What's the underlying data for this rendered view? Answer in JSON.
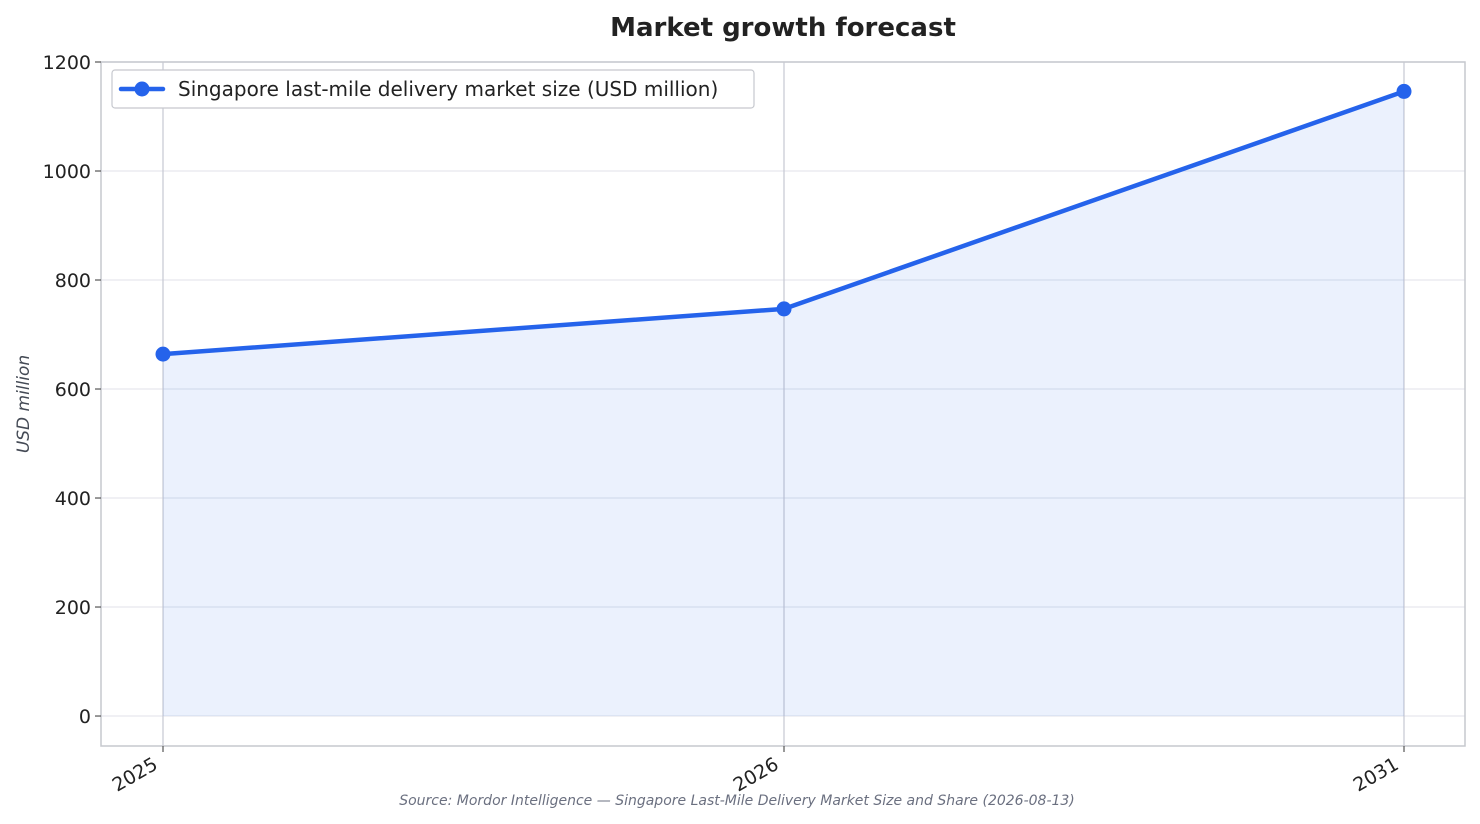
{
  "chart_data": {
    "type": "area",
    "title": "Market growth forecast",
    "xlabel": "",
    "ylabel": "USD million",
    "categories": [
      "2025",
      "2026",
      "2031"
    ],
    "series": [
      {
        "name": "Singapore last-mile delivery market size (USD million)",
        "values": [
          664,
          747,
          1146
        ]
      }
    ],
    "ylim": [
      -55,
      1200
    ],
    "yticks": [
      0,
      200,
      400,
      600,
      800,
      1000,
      1200
    ],
    "grid": true,
    "legend_position": "top-left",
    "source": "Source: Mordor Intelligence — Singapore Last-Mile Delivery Market Size and Share (2026-08-13)"
  },
  "colors": {
    "line": "#2563eb",
    "fill": "#2563eb",
    "grid": "#e6e8ee",
    "vgrid": "#c6c9d2",
    "frame": "#c6c8ce"
  }
}
